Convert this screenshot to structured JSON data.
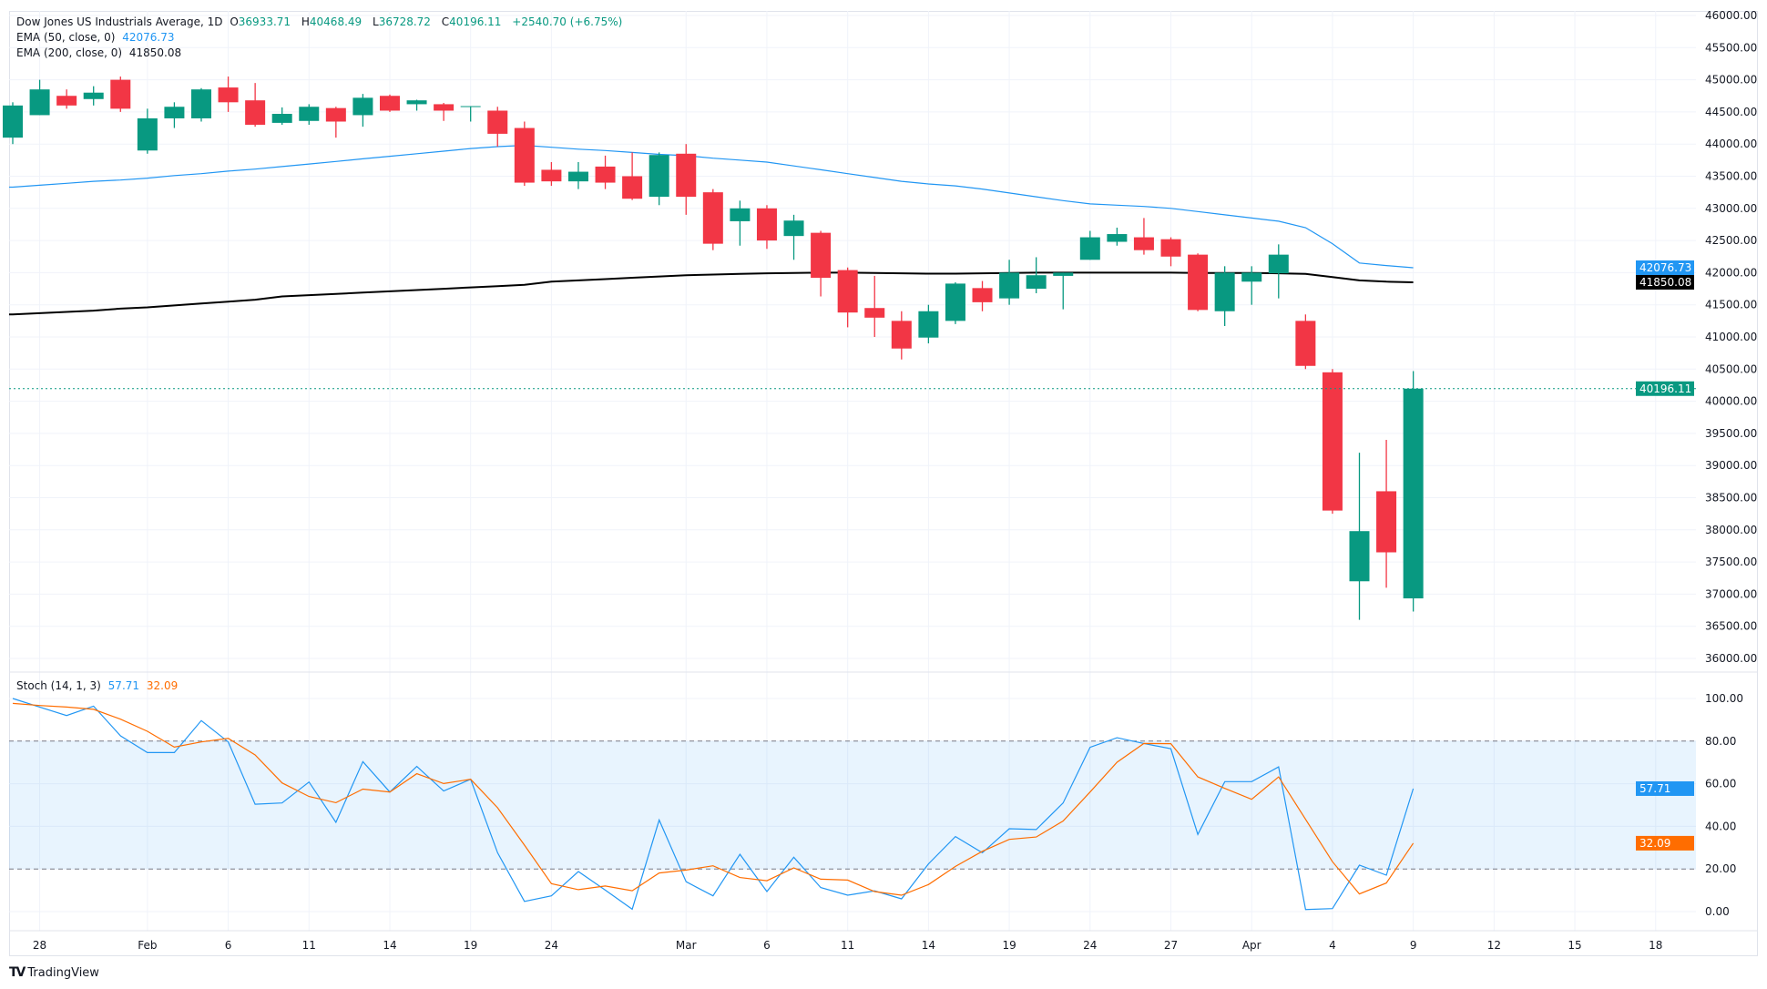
{
  "legend": {
    "symbol": "Dow Jones US Industrials Average, 1D",
    "o_label": "O",
    "o": "36933.71",
    "h_label": "H",
    "h": "40468.49",
    "l_label": "L",
    "l": "36728.72",
    "c_label": "C",
    "c": "40196.11",
    "change": "+2540.70 (+6.75%)",
    "ema50_label": "EMA (50, close, 0)",
    "ema50_value": "42076.73",
    "ema200_label": "EMA (200, close, 0)",
    "ema200_value": "41850.08",
    "stoch_label": "Stoch (14, 1, 3)",
    "stoch_k_value": "57.71",
    "stoch_d_value": "32.09"
  },
  "branding": {
    "logo_text": "TradingView"
  },
  "colors": {
    "up": "#089981",
    "down": "#f23645",
    "ema50": "#2196f3",
    "ema200": "#000000",
    "stoch_k": "#2196f3",
    "stoch_d": "#ff6d00",
    "band": "#2196f3"
  },
  "chart_data": [
    {
      "type": "candlestick",
      "title": "Dow Jones US Industrials Average, 1D",
      "dates": [
        "Jan 27",
        "Jan 28",
        "Jan 29",
        "Jan 30",
        "Jan 31",
        "Feb 3",
        "Feb 4",
        "Feb 5",
        "Feb 6",
        "Feb 7",
        "Feb 10",
        "Feb 11",
        "Feb 12",
        "Feb 13",
        "Feb 14",
        "Feb 17",
        "Feb 18",
        "Feb 19",
        "Feb 20",
        "Feb 21",
        "Feb 24",
        "Feb 25",
        "Feb 26",
        "Feb 27",
        "Feb 28",
        "Mar 3",
        "Mar 4",
        "Mar 5",
        "Mar 6",
        "Mar 7",
        "Mar 10",
        "Mar 11",
        "Mar 12",
        "Mar 13",
        "Mar 14",
        "Mar 17",
        "Mar 18",
        "Mar 19",
        "Mar 20",
        "Mar 21",
        "Mar 24",
        "Mar 25",
        "Mar 26",
        "Mar 27",
        "Mar 28",
        "Mar 31",
        "Apr 1",
        "Apr 2",
        "Apr 3",
        "Apr 4",
        "Apr 7",
        "Apr 8",
        "Apr 9"
      ],
      "open": [
        44100,
        44450,
        44750,
        44700,
        45000,
        43900,
        44400,
        44400,
        44880,
        44680,
        44330,
        44360,
        44560,
        44450,
        44750,
        44620,
        44620,
        44580,
        44520,
        44250,
        43600,
        43420,
        43650,
        43500,
        43180,
        43850,
        43250,
        42800,
        43000,
        42570,
        42620,
        42040,
        41450,
        41250,
        40990,
        41250,
        41760,
        41600,
        41750,
        41950,
        42200,
        42480,
        42550,
        42520,
        42280,
        41400,
        41860,
        41990,
        41250,
        40450,
        37200,
        38600,
        36933.71
      ],
      "high": [
        44650,
        45000,
        44850,
        44900,
        45050,
        44550,
        44650,
        44870,
        45050,
        44950,
        44570,
        44620,
        44580,
        44780,
        44770,
        44690,
        44640,
        44590,
        44580,
        44350,
        43720,
        43720,
        43820,
        43870,
        43870,
        44000,
        43300,
        43120,
        43050,
        42900,
        42650,
        42080,
        41950,
        41400,
        41500,
        41850,
        41870,
        42200,
        42240,
        42000,
        42650,
        42700,
        42850,
        42550,
        42300,
        42100,
        42100,
        42440,
        41350,
        40500,
        39200,
        39400,
        40468.49
      ],
      "low": [
        44000,
        44450,
        44550,
        44600,
        44500,
        43850,
        44250,
        44350,
        44500,
        44270,
        44300,
        44300,
        44100,
        44270,
        44500,
        44520,
        44360,
        44350,
        43960,
        43350,
        43350,
        43300,
        43300,
        43130,
        43050,
        42900,
        42350,
        42420,
        42370,
        42200,
        41630,
        41150,
        41000,
        40650,
        40900,
        41200,
        41400,
        41500,
        41680,
        41430,
        42200,
        42420,
        42280,
        42100,
        41400,
        41170,
        41500,
        41600,
        40500,
        38250,
        36600,
        37100,
        36728.72
      ],
      "close": [
        44600,
        44850,
        44600,
        44800,
        44550,
        44400,
        44580,
        44850,
        44650,
        44300,
        44470,
        44580,
        44350,
        44720,
        44520,
        44680,
        44520,
        44590,
        44160,
        43400,
        43420,
        43570,
        43400,
        43150,
        43830,
        43180,
        42450,
        43000,
        42500,
        42810,
        41920,
        41380,
        41300,
        40820,
        41400,
        41830,
        41540,
        42000,
        41960,
        42000,
        42550,
        42600,
        42350,
        42250,
        41420,
        42000,
        42000,
        42280,
        40550,
        38300,
        37980,
        37650,
        40196.11
      ],
      "ema50": [
        43330,
        43360,
        43390,
        43420,
        43440,
        43470,
        43510,
        43540,
        43580,
        43610,
        43650,
        43690,
        43730,
        43770,
        43810,
        43850,
        43890,
        43930,
        43960,
        43980,
        43950,
        43920,
        43900,
        43870,
        43840,
        43820,
        43780,
        43750,
        43720,
        43660,
        43600,
        43540,
        43480,
        43420,
        43380,
        43350,
        43300,
        43240,
        43180,
        43120,
        43070,
        43050,
        43030,
        43000,
        42950,
        42900,
        42850,
        42800,
        42700,
        42450,
        42150,
        42110,
        42076.73
      ],
      "ema200": [
        41350,
        41370,
        41390,
        41410,
        41440,
        41460,
        41490,
        41520,
        41550,
        41580,
        41630,
        41650,
        41670,
        41690,
        41710,
        41730,
        41750,
        41770,
        41790,
        41810,
        41860,
        41880,
        41900,
        41920,
        41940,
        41960,
        41970,
        41980,
        41990,
        41995,
        42000,
        42000,
        41995,
        41990,
        41985,
        41985,
        41990,
        41995,
        42000,
        42000,
        42000,
        42000,
        42000,
        42000,
        41995,
        41995,
        41995,
        41990,
        41980,
        41930,
        41880,
        41860,
        41850.08
      ],
      "ylim": [
        36000,
        46000
      ],
      "y_ticks": [
        "46000.00",
        "45500.00",
        "45000.00",
        "44500.00",
        "44000.00",
        "43500.00",
        "43000.00",
        "42500.00",
        "42000.00",
        "41500.00",
        "41000.00",
        "40500.00",
        "40000.00",
        "39500.00",
        "39000.00",
        "38500.00",
        "38000.00",
        "37500.00",
        "37000.00",
        "36500.00",
        "36000.00"
      ],
      "last_price_label": "40196.11",
      "ema50_label": "42076.73",
      "ema200_label": "41850.08",
      "grid": true
    },
    {
      "type": "line",
      "title": "Stoch (14, 1, 3)",
      "series": [
        {
          "name": "%K",
          "values": [
            100,
            96,
            92,
            96.4,
            82.5,
            74.6,
            74.6,
            89.6,
            79.6,
            50.4,
            51,
            60.8,
            41.9,
            70.4,
            56.1,
            68.1,
            56.6,
            62.1,
            27.6,
            4.8,
            7.4,
            18.8,
            10.1,
            1.1,
            43,
            14,
            7.4,
            26.9,
            9.4,
            25.5,
            11.3,
            7.7,
            9.7,
            6,
            22.4,
            35.2,
            27.6,
            38.9,
            38.5,
            51,
            77.1,
            81.6,
            78.9,
            76.4,
            36.2,
            61,
            61,
            67.9,
            1,
            1.4,
            21.8,
            17.1,
            57.71
          ]
        },
        {
          "name": "%D",
          "values": [
            97.7,
            96.7,
            96,
            94.9,
            90.3,
            84.6,
            77.2,
            79.6,
            81.3,
            73.5,
            60.4,
            54,
            51.1,
            57.5,
            56.1,
            64.7,
            60.1,
            62.1,
            48.7,
            31.2,
            13.1,
            10.3,
            12,
            9.8,
            18.1,
            19.5,
            21.5,
            16,
            14.5,
            20.5,
            15.2,
            14.8,
            9.4,
            7.7,
            12.7,
            21.2,
            28.3,
            33.9,
            35,
            42.5,
            56.1,
            70.1,
            78.9,
            78.8,
            63.2,
            57.8,
            52.7,
            63.2,
            43.3,
            23.4,
            8.3,
            13.4,
            32.09
          ]
        }
      ],
      "ylim": [
        0,
        100
      ],
      "band": [
        20,
        80
      ],
      "y_ticks": [
        "100.00",
        "80.00",
        "60.00",
        "40.00",
        "20.00",
        "0.00"
      ],
      "k_label": "57.71",
      "d_label": "32.09"
    }
  ],
  "x_axis": {
    "labels": [
      {
        "text": "28",
        "idx": 1
      },
      {
        "text": "Feb",
        "idx": 5
      },
      {
        "text": "6",
        "idx": 8
      },
      {
        "text": "11",
        "idx": 11
      },
      {
        "text": "14",
        "idx": 14
      },
      {
        "text": "19",
        "idx": 17
      },
      {
        "text": "24",
        "idx": 20
      },
      {
        "text": "Mar",
        "idx": 25
      },
      {
        "text": "6",
        "idx": 28
      },
      {
        "text": "11",
        "idx": 31
      },
      {
        "text": "14",
        "idx": 34
      },
      {
        "text": "19",
        "idx": 37
      },
      {
        "text": "24",
        "idx": 40
      },
      {
        "text": "27",
        "idx": 43
      },
      {
        "text": "Apr",
        "idx": 46
      },
      {
        "text": "4",
        "idx": 49
      },
      {
        "text": "9",
        "idx": 52
      },
      {
        "text": "12",
        "idx": 55
      },
      {
        "text": "15",
        "idx": 58
      },
      {
        "text": "18",
        "idx": 61
      }
    ]
  }
}
